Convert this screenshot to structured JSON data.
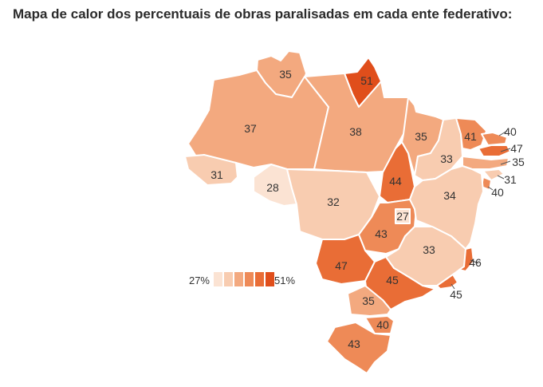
{
  "title": "Mapa de calor dos percentuais de obras paralisadas em cada ente federativo:",
  "legend": {
    "min_label": "27%",
    "max_label": "51%"
  },
  "colors": {
    "scale": [
      "#fbe3d3",
      "#f8ccb0",
      "#f3a97f",
      "#ee8a57",
      "#e96d36",
      "#e04e1b"
    ],
    "border": "#ffffff"
  },
  "chart_data": {
    "type": "heatmap",
    "min": 27,
    "max": 51,
    "states": [
      {
        "name": "RR",
        "value": 35
      },
      {
        "name": "AP",
        "value": 51
      },
      {
        "name": "AM",
        "value": 37
      },
      {
        "name": "PA",
        "value": 38
      },
      {
        "name": "AC",
        "value": 31
      },
      {
        "name": "RO",
        "value": 28
      },
      {
        "name": "MT",
        "value": 32
      },
      {
        "name": "TO",
        "value": 44
      },
      {
        "name": "MA",
        "value": 35
      },
      {
        "name": "PI",
        "value": 33
      },
      {
        "name": "CE",
        "value": 41
      },
      {
        "name": "RN",
        "value": 40
      },
      {
        "name": "PB",
        "value": 47
      },
      {
        "name": "PE",
        "value": 35
      },
      {
        "name": "AL",
        "value": 31
      },
      {
        "name": "SE",
        "value": 40
      },
      {
        "name": "BA",
        "value": 34
      },
      {
        "name": "DF",
        "value": 27
      },
      {
        "name": "GO",
        "value": 43
      },
      {
        "name": "MG",
        "value": 33
      },
      {
        "name": "ES",
        "value": 46
      },
      {
        "name": "MS",
        "value": 47
      },
      {
        "name": "SP",
        "value": 45
      },
      {
        "name": "RJ",
        "value": 45
      },
      {
        "name": "PR",
        "value": 35
      },
      {
        "name": "SC",
        "value": 40
      },
      {
        "name": "RS",
        "value": 43
      }
    ]
  }
}
